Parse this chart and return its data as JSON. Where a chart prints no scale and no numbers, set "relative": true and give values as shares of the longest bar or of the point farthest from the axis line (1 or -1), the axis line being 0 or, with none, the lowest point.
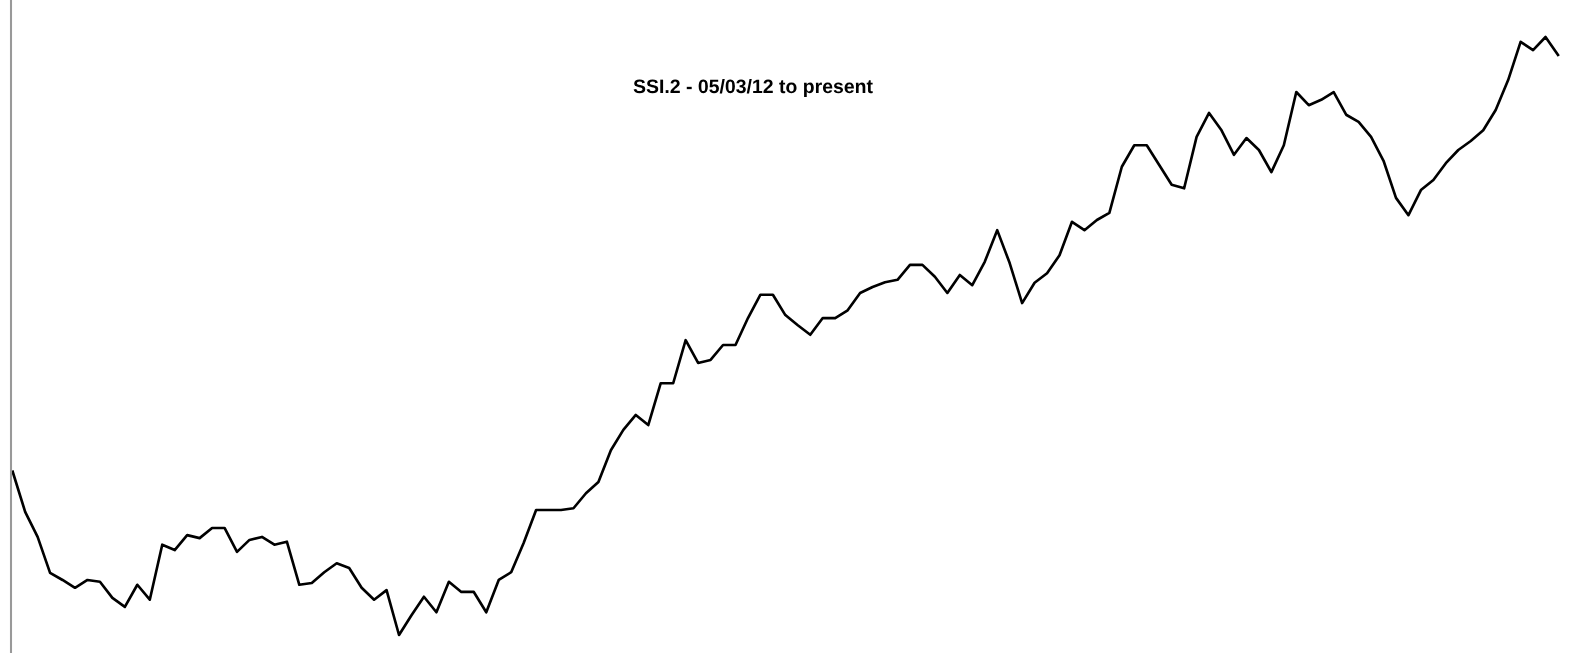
{
  "chart_data": {
    "type": "line",
    "title": "SSI.2 - 05/03/12 to present",
    "relative": true,
    "categories": [
      null,
      null,
      null,
      null,
      null,
      null,
      null,
      null,
      null,
      null,
      null,
      null,
      null,
      null,
      null,
      null,
      null,
      null,
      null,
      null,
      null,
      null,
      null,
      null,
      null,
      null,
      null,
      null,
      null,
      null,
      null,
      null,
      null,
      null,
      null,
      null,
      null,
      null,
      null,
      null,
      null,
      null,
      null,
      null,
      null,
      null,
      null,
      null,
      null,
      null,
      null,
      null,
      null,
      null,
      null,
      null,
      null,
      null,
      null,
      null,
      null,
      null,
      null,
      null,
      null,
      null,
      null,
      null,
      null,
      null,
      null,
      null,
      null,
      null,
      null,
      null,
      null,
      null,
      null,
      null,
      null,
      null,
      null,
      null,
      null,
      null,
      null,
      null,
      null,
      null,
      null,
      null,
      null,
      null,
      null,
      null,
      null,
      null,
      null,
      null,
      null,
      null,
      null,
      null,
      null,
      null,
      null,
      null,
      null,
      null,
      null,
      null,
      null,
      null,
      null,
      null,
      null,
      null,
      null,
      null,
      null,
      null,
      null,
      null,
      null
    ],
    "series": [
      {
        "color": "#000000",
        "values": [
          0.273,
          0.206,
          0.164,
          0.104,
          0.092,
          0.079,
          0.092,
          0.089,
          0.062,
          0.047,
          0.084,
          0.059,
          0.151,
          0.142,
          0.167,
          0.162,
          0.179,
          0.179,
          0.139,
          0.159,
          0.164,
          0.151,
          0.156,
          0.084,
          0.087,
          0.105,
          0.12,
          0.112,
          0.079,
          0.059,
          0.075,
          0.0,
          0.033,
          0.064,
          0.038,
          0.089,
          0.072,
          0.072,
          0.038,
          0.092,
          0.105,
          0.154,
          0.209,
          0.209,
          0.209,
          0.212,
          0.237,
          0.256,
          0.309,
          0.343,
          0.368,
          0.351,
          0.421,
          0.421,
          0.493,
          0.455,
          0.46,
          0.485,
          0.485,
          0.53,
          0.569,
          0.569,
          0.535,
          0.518,
          0.502,
          0.53,
          0.53,
          0.543,
          0.572,
          0.582,
          0.59,
          0.594,
          0.619,
          0.619,
          0.599,
          0.572,
          0.602,
          0.585,
          0.624,
          0.677,
          0.622,
          0.555,
          0.589,
          0.605,
          0.635,
          0.691,
          0.677,
          0.694,
          0.706,
          0.783,
          0.819,
          0.819,
          0.786,
          0.753,
          0.747,
          0.833,
          0.873,
          0.844,
          0.803,
          0.831,
          0.811,
          0.774,
          0.819,
          0.908,
          0.886,
          0.895,
          0.908,
          0.87,
          0.858,
          0.833,
          0.793,
          0.731,
          0.702,
          0.744,
          0.761,
          0.789,
          0.811,
          0.826,
          0.844,
          0.878,
          0.928,
          0.992,
          0.978,
          1.0,
          0.97
        ]
      }
    ],
    "marker": "none",
    "line_style": "solid"
  }
}
